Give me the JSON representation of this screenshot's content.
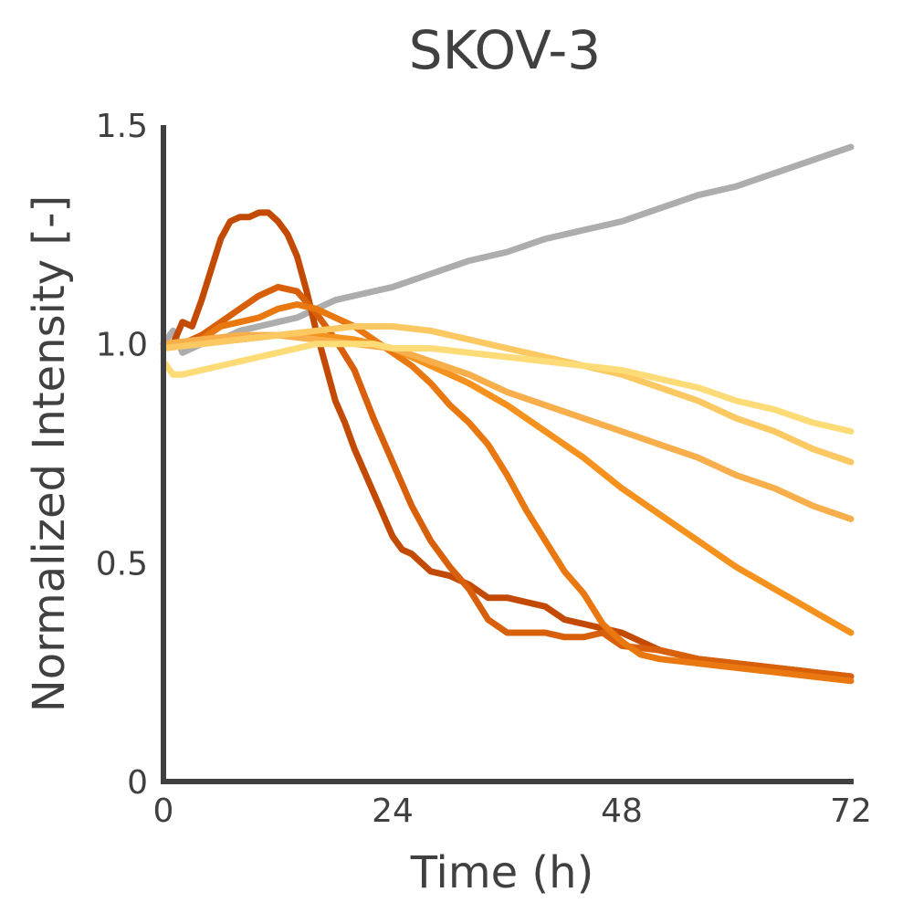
{
  "chart_data": {
    "type": "line",
    "title": "SKOV-3",
    "xlabel": "Time (h)",
    "ylabel": "Normalized Intensity [-]",
    "xlim": [
      0,
      72
    ],
    "ylim": [
      0,
      1.5
    ],
    "x_ticks": [
      0,
      24,
      48,
      72
    ],
    "x_tick_labels": [
      "0",
      "24",
      "48",
      "72"
    ],
    "y_ticks": [
      0,
      0.5,
      1.0,
      1.5
    ],
    "y_tick_labels": [
      "0",
      "0.5",
      "1.0",
      "1.5"
    ],
    "grid": false,
    "legend": "none",
    "series": [
      {
        "color": "#ADADAD",
        "x": [
          0,
          1,
          2,
          4,
          6,
          8,
          10,
          12,
          14,
          16,
          18,
          20,
          22,
          24,
          28,
          32,
          36,
          40,
          44,
          48,
          52,
          56,
          60,
          64,
          68,
          72
        ],
        "values": [
          1.0,
          1.03,
          0.98,
          1.0,
          1.01,
          1.03,
          1.04,
          1.05,
          1.06,
          1.08,
          1.1,
          1.11,
          1.12,
          1.13,
          1.16,
          1.19,
          1.21,
          1.24,
          1.26,
          1.28,
          1.31,
          1.34,
          1.36,
          1.39,
          1.42,
          1.45
        ]
      },
      {
        "color": "#C24A02",
        "x": [
          0,
          1,
          2,
          3,
          4,
          5,
          6,
          7,
          8,
          9,
          10,
          11,
          12,
          13,
          14,
          15,
          16,
          17,
          18,
          19,
          20,
          22,
          24,
          25,
          26,
          28,
          30,
          32,
          34,
          36,
          38,
          40,
          42,
          44,
          46,
          48,
          52,
          56,
          60,
          64,
          68,
          72
        ],
        "values": [
          1.0,
          1.0,
          1.05,
          1.04,
          1.1,
          1.17,
          1.24,
          1.28,
          1.29,
          1.29,
          1.3,
          1.3,
          1.28,
          1.25,
          1.2,
          1.12,
          1.03,
          0.95,
          0.87,
          0.82,
          0.76,
          0.66,
          0.56,
          0.53,
          0.52,
          0.48,
          0.47,
          0.45,
          0.42,
          0.42,
          0.41,
          0.4,
          0.37,
          0.36,
          0.35,
          0.34,
          0.3,
          0.28,
          0.27,
          0.26,
          0.25,
          0.24
        ]
      },
      {
        "color": "#D9600A",
        "x": [
          0,
          2,
          4,
          6,
          8,
          10,
          12,
          14,
          16,
          18,
          20,
          22,
          24,
          26,
          28,
          30,
          32,
          34,
          36,
          38,
          40,
          42,
          44,
          46,
          48,
          52,
          56,
          60,
          64,
          68,
          72
        ],
        "values": [
          1.0,
          1.0,
          1.02,
          1.05,
          1.08,
          1.11,
          1.13,
          1.12,
          1.07,
          1.01,
          0.94,
          0.83,
          0.73,
          0.63,
          0.55,
          0.49,
          0.44,
          0.37,
          0.34,
          0.34,
          0.34,
          0.33,
          0.33,
          0.34,
          0.31,
          0.3,
          0.28,
          0.27,
          0.26,
          0.25,
          0.24
        ]
      },
      {
        "color": "#E8780F",
        "x": [
          0,
          2,
          4,
          6,
          8,
          10,
          12,
          14,
          16,
          18,
          20,
          22,
          24,
          26,
          28,
          30,
          32,
          34,
          36,
          38,
          40,
          42,
          44,
          46,
          48,
          50,
          52,
          56,
          60,
          64,
          68,
          72
        ],
        "values": [
          1.0,
          1.0,
          1.01,
          1.04,
          1.05,
          1.06,
          1.08,
          1.09,
          1.08,
          1.06,
          1.04,
          1.01,
          0.98,
          0.95,
          0.91,
          0.86,
          0.82,
          0.77,
          0.7,
          0.62,
          0.55,
          0.48,
          0.43,
          0.36,
          0.32,
          0.29,
          0.28,
          0.27,
          0.26,
          0.25,
          0.24,
          0.23
        ]
      },
      {
        "color": "#F5921E",
        "x": [
          0,
          4,
          8,
          12,
          16,
          20,
          24,
          28,
          32,
          36,
          40,
          44,
          48,
          52,
          56,
          60,
          64,
          68,
          72
        ],
        "values": [
          1.0,
          1.0,
          1.01,
          1.02,
          1.02,
          1.01,
          0.99,
          0.95,
          0.91,
          0.86,
          0.8,
          0.74,
          0.67,
          0.61,
          0.55,
          0.49,
          0.44,
          0.39,
          0.34
        ]
      },
      {
        "color": "#F8AE4A",
        "x": [
          0,
          4,
          8,
          12,
          16,
          20,
          24,
          28,
          32,
          36,
          40,
          44,
          48,
          52,
          56,
          60,
          64,
          68,
          72
        ],
        "values": [
          1.0,
          1.01,
          1.02,
          1.02,
          1.01,
          1.0,
          0.99,
          0.96,
          0.93,
          0.89,
          0.86,
          0.83,
          0.8,
          0.77,
          0.74,
          0.7,
          0.67,
          0.63,
          0.6
        ]
      },
      {
        "color": "#FBC862",
        "x": [
          0,
          4,
          8,
          12,
          16,
          20,
          24,
          28,
          32,
          36,
          40,
          44,
          48,
          52,
          56,
          60,
          64,
          68,
          72
        ],
        "values": [
          0.99,
          1.0,
          1.01,
          1.02,
          1.03,
          1.04,
          1.04,
          1.03,
          1.01,
          0.99,
          0.97,
          0.95,
          0.93,
          0.9,
          0.87,
          0.83,
          0.8,
          0.76,
          0.73
        ]
      },
      {
        "color": "#FDDC78",
        "x": [
          0,
          1,
          2,
          4,
          6,
          8,
          10,
          12,
          14,
          16,
          18,
          20,
          22,
          24,
          28,
          32,
          36,
          40,
          44,
          48,
          52,
          56,
          60,
          64,
          68,
          72
        ],
        "values": [
          0.96,
          0.93,
          0.93,
          0.94,
          0.95,
          0.96,
          0.97,
          0.98,
          0.99,
          1.0,
          1.0,
          1.0,
          1.0,
          0.99,
          0.99,
          0.98,
          0.97,
          0.96,
          0.95,
          0.94,
          0.92,
          0.9,
          0.87,
          0.85,
          0.82,
          0.8
        ]
      }
    ]
  }
}
